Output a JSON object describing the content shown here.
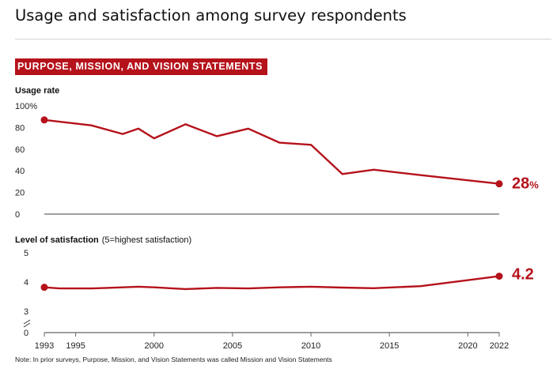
{
  "title": "Usage and satisfaction among survey respondents",
  "banner": "PURPOSE, MISSION, AND VISION STATEMENTS",
  "note": "Note: In prior surveys, Purpose, Mission, and Vision Statements was called Mission and Vision Statements",
  "colors": {
    "line": "#b5121b",
    "banner": "#b5121b",
    "axis": "#666666"
  },
  "chart_data": [
    {
      "type": "line",
      "ylabel": "Usage rate",
      "ylim": [
        0,
        100
      ],
      "y_ticks": [
        "100%",
        "80",
        "60",
        "40",
        "20",
        "0"
      ],
      "y_tick_values": [
        100,
        80,
        60,
        40,
        20,
        0
      ],
      "end_label_value": "28",
      "end_label_unit": "%",
      "series": [
        {
          "x": [
            1993,
            1996,
            1998,
            1999,
            2000,
            2002,
            2004,
            2006,
            2008,
            2010,
            2012,
            2014,
            2017,
            2022
          ],
          "values": [
            87,
            82,
            74,
            79,
            70,
            83,
            72,
            79,
            66,
            64,
            37,
            41,
            36,
            28
          ]
        }
      ]
    },
    {
      "type": "line",
      "ylabel": "Level of satisfaction",
      "ylabel_note": "(5=highest satisfaction)",
      "ylim": [
        3,
        5
      ],
      "y_ticks": [
        "5",
        "4",
        "3",
        "0"
      ],
      "y_tick_values": [
        5,
        4,
        3,
        0
      ],
      "axis_break": true,
      "end_label_value": "4.2",
      "series": [
        {
          "x": [
            1993,
            1994,
            1996,
            1997,
            1999,
            2000,
            2002,
            2004,
            2006,
            2008,
            2010,
            2012,
            2014,
            2017,
            2022
          ],
          "values": [
            3.82,
            3.78,
            3.78,
            3.8,
            3.84,
            3.82,
            3.76,
            3.8,
            3.78,
            3.82,
            3.84,
            3.81,
            3.79,
            3.86,
            4.2
          ]
        }
      ],
      "x_ticks": [
        "1993",
        "1995",
        "2000",
        "2005",
        "2010",
        "2015",
        "2020",
        "2022"
      ],
      "x_tick_values": [
        1993,
        1995,
        2000,
        2005,
        2010,
        2015,
        2020,
        2022
      ]
    }
  ]
}
